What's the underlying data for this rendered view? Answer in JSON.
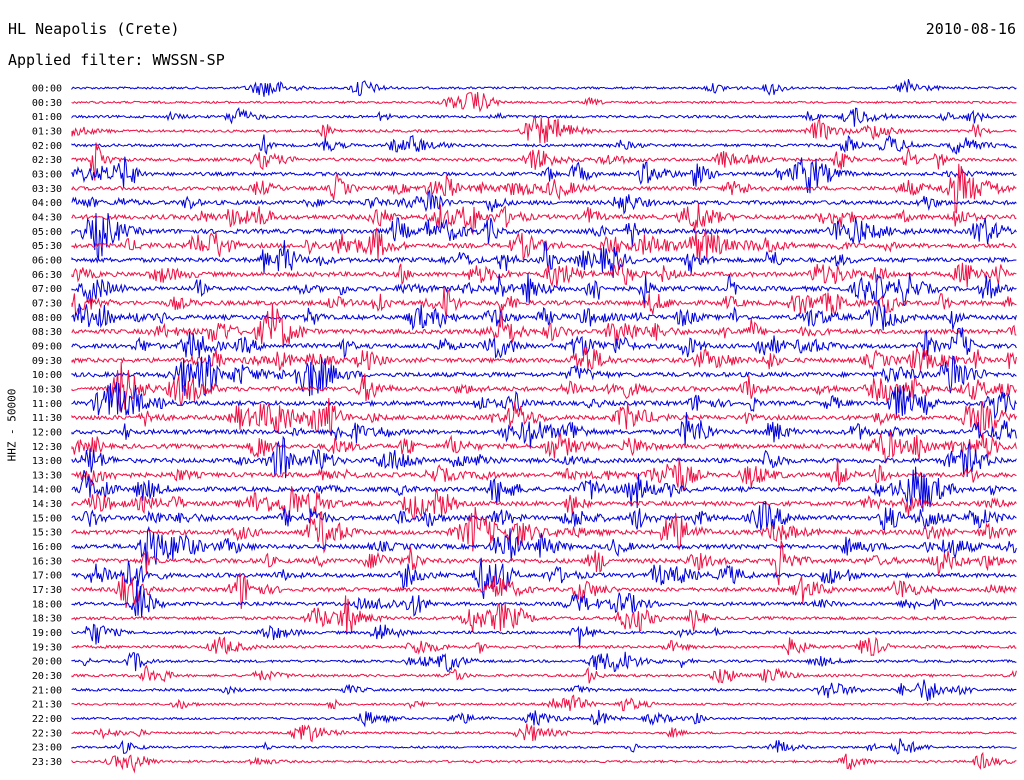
{
  "header": {
    "station": "HL Neapolis (Crete)",
    "date": "2010-08-16",
    "filter": "Applied filter: WWSSN-SP"
  },
  "chart_data": {
    "type": "line",
    "title": "HL Neapolis (Crete)",
    "subtitle": "Applied filter: WWSSN-SP",
    "date": "2010-08-16",
    "ylabel": "HHZ - 50000",
    "series_colors": [
      "#0000dd",
      "#ee1144"
    ],
    "row_labels": [
      "00:00",
      "00:30",
      "01:00",
      "01:30",
      "02:00",
      "02:30",
      "03:00",
      "03:30",
      "04:00",
      "04:30",
      "05:00",
      "05:30",
      "06:00",
      "06:30",
      "07:00",
      "07:30",
      "08:00",
      "08:30",
      "09:00",
      "09:30",
      "10:00",
      "10:30",
      "11:00",
      "11:30",
      "12:00",
      "12:30",
      "13:00",
      "13:30",
      "14:00",
      "14:30",
      "15:00",
      "15:30",
      "16:00",
      "16:30",
      "17:00",
      "17:30",
      "18:00",
      "18:30",
      "19:00",
      "19:30",
      "20:00",
      "20:30",
      "21:00",
      "21:30",
      "22:00",
      "22:30",
      "23:00",
      "23:30"
    ],
    "row_noise_level": [
      0.3,
      0.3,
      0.4,
      0.4,
      0.5,
      0.6,
      0.7,
      0.8,
      0.9,
      1.0,
      1.0,
      1.0,
      1.0,
      1.0,
      1.0,
      1.0,
      1.0,
      1.0,
      1.0,
      1.0,
      1.0,
      1.0,
      1.0,
      1.0,
      1.0,
      1.0,
      1.0,
      1.0,
      1.0,
      1.0,
      1.0,
      1.0,
      1.0,
      1.0,
      0.9,
      0.8,
      0.7,
      0.6,
      0.5,
      0.5,
      0.4,
      0.4,
      0.4,
      0.3,
      0.3,
      0.3,
      0.3,
      0.3
    ],
    "grid": false
  }
}
